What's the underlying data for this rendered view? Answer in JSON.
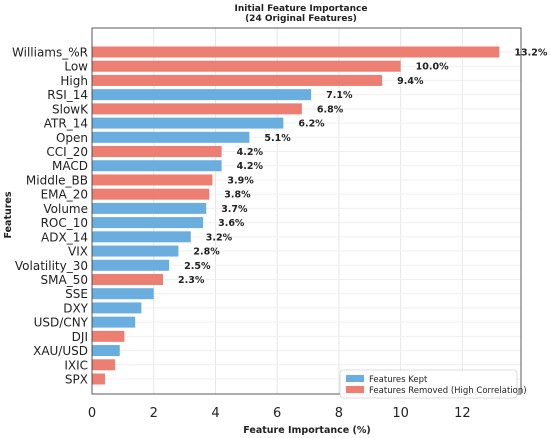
{
  "chart_data": {
    "type": "bar",
    "orientation": "horizontal",
    "title": "Initial Feature Importance",
    "subtitle": "(24 Original Features)",
    "xlabel": "Feature Importance (%)",
    "ylabel": "Features",
    "xlim": [
      0,
      13.9
    ],
    "xticks": [
      0,
      2,
      4,
      6,
      8,
      10,
      12
    ],
    "grid": true,
    "legend_position": "bottom-right",
    "colors": {
      "kept": "#6aaee0",
      "removed": "#ec7e72"
    },
    "legend": [
      {
        "key": "kept",
        "label": "Features Kept"
      },
      {
        "key": "removed",
        "label": "Features Removed (High Correlation)"
      }
    ],
    "bars": [
      {
        "category": "Williams_%R",
        "value": 13.2,
        "label": "13.2%",
        "group": "removed"
      },
      {
        "category": "Low",
        "value": 10.0,
        "label": "10.0%",
        "group": "removed"
      },
      {
        "category": "High",
        "value": 9.4,
        "label": "9.4%",
        "group": "removed"
      },
      {
        "category": "RSI_14",
        "value": 7.1,
        "label": "7.1%",
        "group": "kept"
      },
      {
        "category": "SlowK",
        "value": 6.8,
        "label": "6.8%",
        "group": "removed"
      },
      {
        "category": "ATR_14",
        "value": 6.2,
        "label": "6.2%",
        "group": "kept"
      },
      {
        "category": "Open",
        "value": 5.1,
        "label": "5.1%",
        "group": "kept"
      },
      {
        "category": "CCI_20",
        "value": 4.2,
        "label": "4.2%",
        "group": "removed"
      },
      {
        "category": "MACD",
        "value": 4.2,
        "label": "4.2%",
        "group": "kept"
      },
      {
        "category": "Middle_BB",
        "value": 3.9,
        "label": "3.9%",
        "group": "removed"
      },
      {
        "category": "EMA_20",
        "value": 3.8,
        "label": "3.8%",
        "group": "removed"
      },
      {
        "category": "Volume",
        "value": 3.7,
        "label": "3.7%",
        "group": "kept"
      },
      {
        "category": "ROC_10",
        "value": 3.6,
        "label": "3.6%",
        "group": "kept"
      },
      {
        "category": "ADX_14",
        "value": 3.2,
        "label": "3.2%",
        "group": "kept"
      },
      {
        "category": "VIX",
        "value": 2.8,
        "label": "2.8%",
        "group": "kept"
      },
      {
        "category": "Volatility_30",
        "value": 2.5,
        "label": "2.5%",
        "group": "kept"
      },
      {
        "category": "SMA_50",
        "value": 2.3,
        "label": "2.3%",
        "group": "removed"
      },
      {
        "category": "SSE",
        "value": 2.0,
        "label": "",
        "group": "kept"
      },
      {
        "category": "DXY",
        "value": 1.6,
        "label": "",
        "group": "kept"
      },
      {
        "category": "USD/CNY",
        "value": 1.4,
        "label": "",
        "group": "kept"
      },
      {
        "category": "DJI",
        "value": 1.05,
        "label": "",
        "group": "removed"
      },
      {
        "category": "XAU/USD",
        "value": 0.9,
        "label": "",
        "group": "kept"
      },
      {
        "category": "IXIC",
        "value": 0.75,
        "label": "",
        "group": "removed"
      },
      {
        "category": "SPX",
        "value": 0.42,
        "label": "",
        "group": "removed"
      }
    ]
  }
}
